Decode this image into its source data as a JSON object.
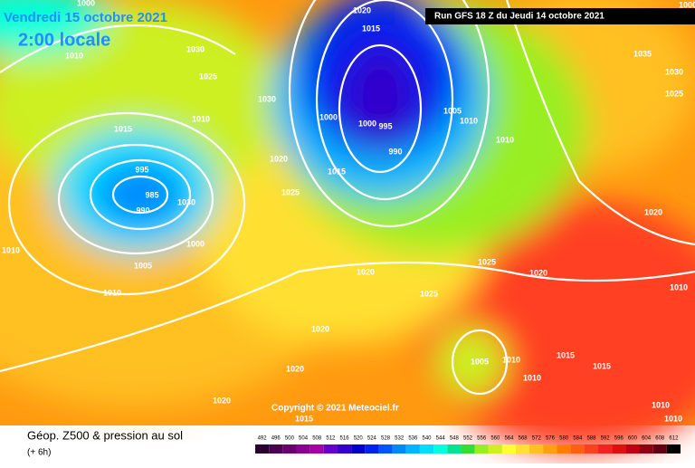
{
  "header": {
    "date": "Vendredi 15 octobre 2021",
    "local_time": "2:00 locale",
    "run": "Run GFS 18 Z du Jeudi 14 octobre 2021"
  },
  "map": {
    "isobar_labels": [
      1000,
      1020,
      1015,
      1030,
      1010,
      1025,
      1030,
      1010,
      1015,
      1000,
      1000,
      995,
      1005,
      1010,
      990,
      1010,
      1035,
      1030,
      1025,
      1020,
      1015,
      995,
      985,
      1030,
      990,
      1025,
      1010,
      1000,
      1005,
      1025,
      1020,
      1020,
      1010,
      1025,
      1010,
      1020,
      1020,
      1005,
      1010,
      1015,
      1015,
      1020,
      1010,
      1020,
      1015,
      1010,
      1010,
      1000
    ],
    "copyright": "Copyright © 2021 Meteociel.fr"
  },
  "footer": {
    "title": "Géop. Z500 & pression au sol",
    "lead": "(+ 6h)",
    "legend": {
      "values": [
        492,
        496,
        500,
        504,
        508,
        512,
        516,
        520,
        524,
        528,
        532,
        536,
        540,
        544,
        548,
        552,
        556,
        560,
        564,
        568,
        572,
        576,
        580,
        584,
        588,
        592,
        596,
        600,
        604,
        608,
        612
      ],
      "colors": [
        "#2a0033",
        "#4b0050",
        "#6a0070",
        "#8c008f",
        "#a500a5",
        "#6600cc",
        "#3300cc",
        "#0000cc",
        "#0022ee",
        "#0055ff",
        "#0088ff",
        "#00b5ff",
        "#00ddff",
        "#00ffdd",
        "#00e58f",
        "#33dd33",
        "#99ee22",
        "#ccf020",
        "#ffff33",
        "#ffe033",
        "#ffc020",
        "#ffa010",
        "#ff8000",
        "#ff6010",
        "#ff4020",
        "#f52020",
        "#e01010",
        "#c00010",
        "#900010",
        "#600010",
        "#000000"
      ]
    }
  }
}
